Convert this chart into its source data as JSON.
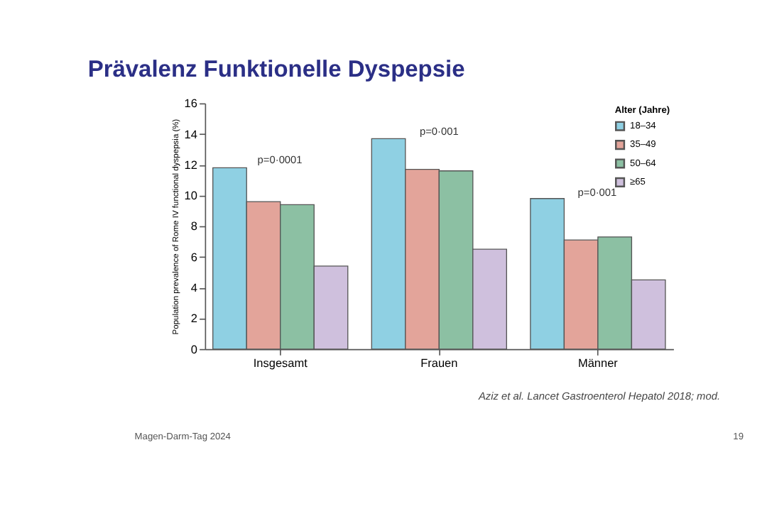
{
  "chart_data": {
    "type": "bar",
    "title": "Prävalenz Funktionelle Dyspepsie",
    "categories": [
      "Insgesamt",
      "Frauen",
      "Männer"
    ],
    "series": [
      {
        "name": "18–34",
        "color": "#8fd0e3",
        "values": [
          11.8,
          13.7,
          9.8
        ]
      },
      {
        "name": "35–49",
        "color": "#e3a49a",
        "values": [
          9.6,
          11.7,
          7.1
        ]
      },
      {
        "name": "50–64",
        "color": "#8cc0a3",
        "values": [
          9.4,
          11.6,
          7.3
        ]
      },
      {
        "name": "≥65",
        "color": "#cfc0dd",
        "values": [
          5.4,
          6.5,
          4.5
        ]
      }
    ],
    "ylabel": "Population prevalence of Rome IV functional dyspepsia (%)",
    "legend_title": "Alter (Jahre)",
    "legend": "top right",
    "ylim": [
      0,
      16
    ],
    "yticks": [
      0,
      2,
      4,
      6,
      8,
      10,
      12,
      14,
      16
    ],
    "grid": false,
    "annotations": [
      "p=0·0001",
      "p=0·001",
      "p=0·001",
      "Aziz et al. Lancet Gastroenterol Hepatol 2018; mod.",
      "Magen-Darm-Tag 2024",
      "19"
    ]
  }
}
